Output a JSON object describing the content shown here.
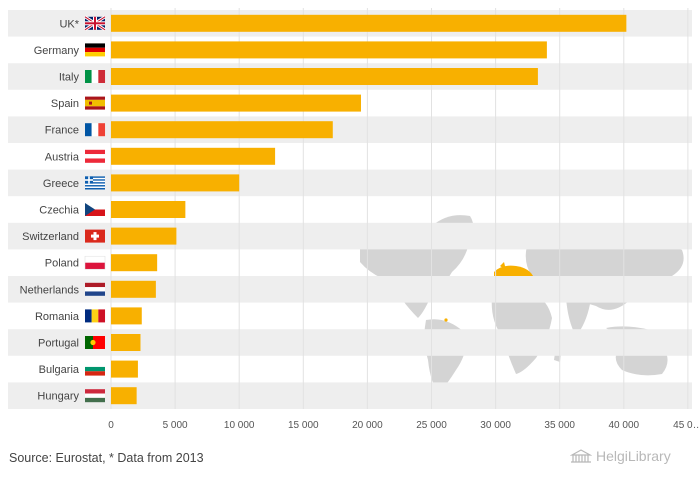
{
  "chart_data": {
    "type": "bar",
    "orientation": "horizontal",
    "categories": [
      "UK*",
      "Germany",
      "Italy",
      "Spain",
      "France",
      "Austria",
      "Greece",
      "Czechia",
      "Switzerland",
      "Poland",
      "Netherlands",
      "Romania",
      "Portugal",
      "Bulgaria",
      "Hungary"
    ],
    "values": [
      40200,
      34000,
      33300,
      19500,
      17300,
      12800,
      10000,
      5800,
      5100,
      3600,
      3500,
      2400,
      2300,
      2100,
      2000
    ],
    "flag_icons": [
      "uk-flag-icon",
      "germany-flag-icon",
      "italy-flag-icon",
      "spain-flag-icon",
      "france-flag-icon",
      "austria-flag-icon",
      "greece-flag-icon",
      "czechia-flag-icon",
      "switzerland-flag-icon",
      "poland-flag-icon",
      "netherlands-flag-icon",
      "romania-flag-icon",
      "portugal-flag-icon",
      "bulgaria-flag-icon",
      "hungary-flag-icon"
    ],
    "x_ticks": [
      "0",
      "5 000",
      "10 000",
      "15 000",
      "20 000",
      "25 000",
      "30 000",
      "35 000",
      "40 000",
      "45 0…"
    ],
    "xlim": [
      0,
      45000
    ],
    "grid": true,
    "bar_color": "#f8b000",
    "band_color": "#eeeeee",
    "title": "",
    "xlabel": "",
    "ylabel": ""
  },
  "footer": {
    "source": "Source: Eurostat, * Data from 2013",
    "brand": "HelgiLibrary",
    "brand_icon": "library-building-icon"
  }
}
